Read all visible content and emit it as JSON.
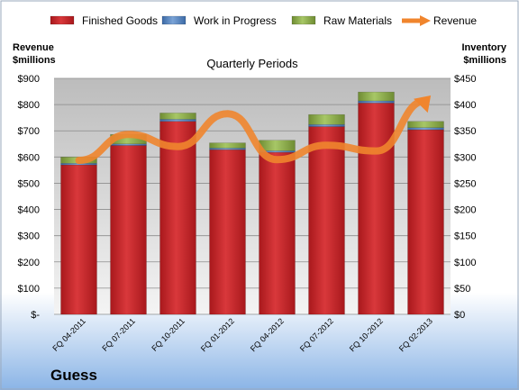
{
  "chart_data": {
    "type": "bar",
    "subtitle": "Quarterly Periods",
    "company": "Guess",
    "left_axis": {
      "label_line1": "Revenue",
      "label_line2": "$millions",
      "range": [
        0,
        900
      ],
      "step": 100,
      "ticks": [
        "$-",
        "$100",
        "$200",
        "$300",
        "$400",
        "$500",
        "$600",
        "$700",
        "$800",
        "$900"
      ]
    },
    "right_axis": {
      "label_line1": "Inventory",
      "label_line2": "$millions",
      "range": [
        0,
        450
      ],
      "step": 50,
      "ticks": [
        "$0",
        "$50",
        "$100",
        "$150",
        "$200",
        "$250",
        "$300",
        "$350",
        "$400",
        "$450"
      ]
    },
    "categories": [
      "FQ 04-2011",
      "FQ 07-2011",
      "FQ 10-2011",
      "FQ 01-2012",
      "FQ 04-2012",
      "FQ 07-2012",
      "FQ 10-2012",
      "FQ 02-2013"
    ],
    "series": [
      {
        "name": "Finished Goods",
        "kind": "stacked-bar",
        "axis": "right",
        "color": "#d0262a",
        "values": [
          285,
          322,
          368,
          314,
          309,
          358,
          403,
          352
        ]
      },
      {
        "name": "Work in Progress",
        "kind": "stacked-bar",
        "axis": "right",
        "color": "#4f81bd",
        "values": [
          3,
          3,
          4,
          3,
          3,
          4,
          4,
          4
        ]
      },
      {
        "name": "Raw Materials",
        "kind": "stacked-bar",
        "axis": "right",
        "color": "#9bbb59",
        "values": [
          12,
          18,
          12,
          10,
          20,
          19,
          17,
          12
        ]
      },
      {
        "name": "Revenue",
        "kind": "line",
        "axis": "left",
        "color": "#f0852d",
        "values": [
          587,
          686,
          640,
          765,
          590,
          645,
          623,
          815
        ]
      }
    ],
    "grid": true,
    "legend_position": "top"
  }
}
